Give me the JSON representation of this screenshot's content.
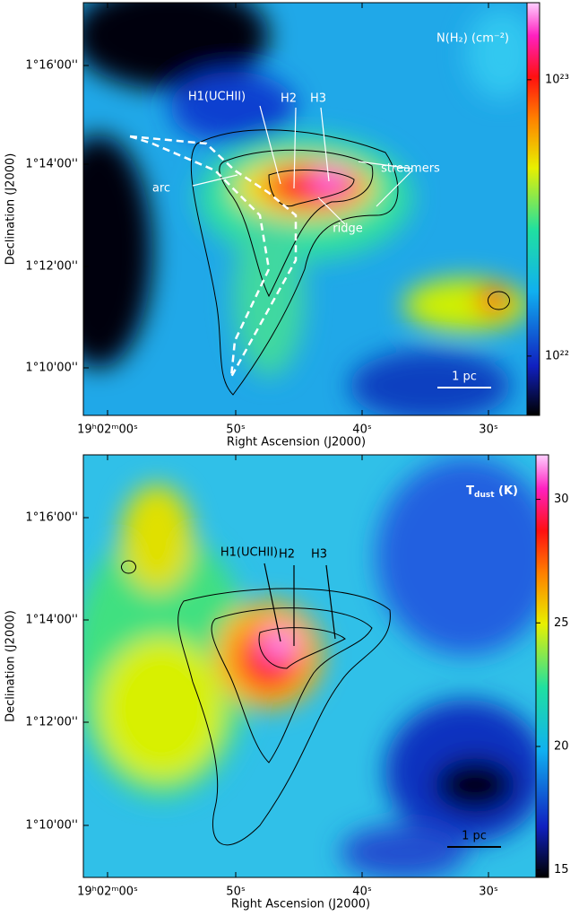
{
  "panels": [
    {
      "colorbar_label": "N(H₂) (cm⁻²)",
      "colorbar": {
        "log": true,
        "lim": [
          6.1e+21,
          1.9e+23
        ],
        "ticks": [
          {
            "value": 1e+22,
            "label": "10²²"
          },
          {
            "value": 1e+23,
            "label": "10²³"
          }
        ]
      },
      "x_label": "Right Ascension (J2000)",
      "y_label": "Declination (J2000)",
      "x_ticks": [
        "19ʰ02ᵐ00ˢ",
        "50ˢ",
        "40ˢ",
        "30ˢ"
      ],
      "y_ticks": [
        "1°16'00''",
        "1°14'00''",
        "1°12'00''",
        "1°10'00''"
      ],
      "annotations": [
        "H1(UCHII)",
        "H2",
        "H3",
        "streamers",
        "arc",
        "ridge"
      ],
      "scale_bar": "1 pc"
    },
    {
      "colorbar_label": {
        "symbol": "T",
        "subscript": "dust",
        "unit": "(K)"
      },
      "colorbar": {
        "log": false,
        "lim": [
          14.7,
          31.8
        ],
        "ticks": [
          15,
          20,
          25,
          30
        ]
      },
      "x_label": "Right Ascension (J2000)",
      "y_label": "Declination (J2000)",
      "x_ticks": [
        "19ʰ02ᵐ00ˢ",
        "50ˢ",
        "40ˢ",
        "30ˢ"
      ],
      "y_ticks": [
        "1°16'00''",
        "1°14'00''",
        "1°12'00''",
        "1°10'00''"
      ],
      "annotations": [
        "H1(UCHII)",
        "H2",
        "H3"
      ],
      "scale_bar": "1 pc"
    }
  ]
}
